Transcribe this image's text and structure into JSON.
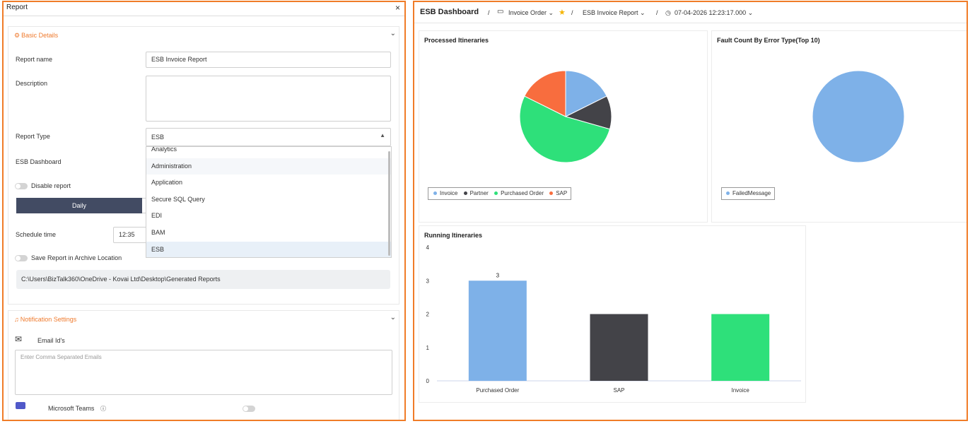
{
  "report_panel": {
    "title": "Report",
    "close_label": "×",
    "basic_details": {
      "title": "Basic Details",
      "report_name_label": "Report name",
      "report_name_value": "ESB Invoice Report",
      "description_label": "Description",
      "description_value": "",
      "report_type_label": "Report Type",
      "report_type_value": "ESB",
      "esb_dashboard_label": "ESB Dashboard",
      "disable_report_label": "Disable report",
      "daily_label": "Daily",
      "schedule_time_label": "Schedule time",
      "schedule_time_value": "12:35",
      "archive_label": "Save Report in Archive Location",
      "archive_path": "C:\\Users\\BizTalk360\\OneDrive - Kovai Ltd\\Desktop\\Generated Reports"
    },
    "report_type_options": [
      "Analytics",
      "Administration",
      "Application",
      "Secure SQL Query",
      "EDI",
      "BAM",
      "ESB"
    ],
    "notification": {
      "title": "Notification Settings",
      "email_label": "Email Id's",
      "email_placeholder": "Enter Comma Separated Emails",
      "teams_label": "Microsoft Teams"
    }
  },
  "dashboard": {
    "title": "ESB Dashboard",
    "sep": "/",
    "crumb_invoice": "Invoice Order",
    "crumb_report": "ESB Invoice Report",
    "crumb_time": "07-04-2026 12:23:17.000",
    "colors": {
      "invoice": "#7eb1e8",
      "partner": "#434348",
      "purchased_order": "#2ee07a",
      "sap": "#f86d3e",
      "failed": "#7eb1e8"
    }
  },
  "chart_data": [
    {
      "type": "pie",
      "title": "Processed Itineraries",
      "labels": [
        "Invoice",
        "Partner",
        "Purchased Order",
        "SAP"
      ],
      "values": [
        3,
        2,
        9,
        3
      ]
    },
    {
      "type": "pie",
      "title": "Fault Count By Error Type(Top 10)",
      "labels": [
        "FailedMessage"
      ],
      "values": [
        1
      ]
    },
    {
      "type": "bar",
      "title": "Running Itineraries",
      "categories": [
        "Purchased Order",
        "SAP",
        "Invoice"
      ],
      "values": [
        3,
        2,
        2
      ],
      "data_labels": [
        "3",
        "",
        ""
      ],
      "ylim": [
        0,
        4
      ],
      "yticks": [
        "0",
        "1",
        "2",
        "3",
        "4"
      ]
    }
  ]
}
